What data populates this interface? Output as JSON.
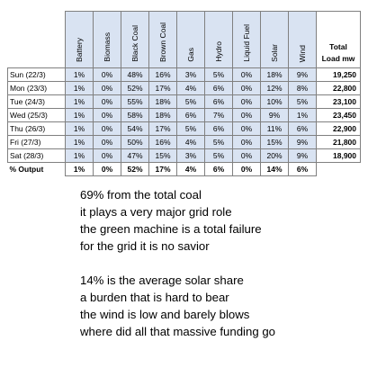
{
  "table": {
    "sources": [
      "Battery",
      "Biomass",
      "Black Coal",
      "Brown Coal",
      "Gas",
      "Hydro",
      "Liquid Fuel",
      "Solar",
      "Wind"
    ],
    "total_header": [
      "Total",
      "Load mw"
    ],
    "rows": [
      {
        "day": "Sun (22/3)",
        "values": [
          "1%",
          "0%",
          "48%",
          "16%",
          "3%",
          "5%",
          "0%",
          "18%",
          "9%"
        ],
        "total": "19,250"
      },
      {
        "day": "Mon (23/3)",
        "values": [
          "1%",
          "0%",
          "52%",
          "17%",
          "4%",
          "6%",
          "0%",
          "12%",
          "8%"
        ],
        "total": "22,800"
      },
      {
        "day": "Tue (24/3)",
        "values": [
          "1%",
          "0%",
          "55%",
          "18%",
          "5%",
          "6%",
          "0%",
          "10%",
          "5%"
        ],
        "total": "23,100"
      },
      {
        "day": "Wed (25/3)",
        "values": [
          "1%",
          "0%",
          "58%",
          "18%",
          "6%",
          "7%",
          "0%",
          "9%",
          "1%"
        ],
        "total": "23,450"
      },
      {
        "day": "Thu (26/3)",
        "values": [
          "1%",
          "0%",
          "54%",
          "17%",
          "5%",
          "6%",
          "0%",
          "11%",
          "6%"
        ],
        "total": "22,900"
      },
      {
        "day": "Fri (27/3)",
        "values": [
          "1%",
          "0%",
          "50%",
          "16%",
          "4%",
          "5%",
          "0%",
          "15%",
          "9%"
        ],
        "total": "21,800"
      },
      {
        "day": "Sat (28/3)",
        "values": [
          "1%",
          "0%",
          "47%",
          "15%",
          "3%",
          "5%",
          "0%",
          "20%",
          "9%"
        ],
        "total": "18,900"
      }
    ],
    "output": {
      "label": "% Output",
      "values": [
        "1%",
        "0%",
        "52%",
        "17%",
        "4%",
        "6%",
        "0%",
        "14%",
        "6%"
      ]
    }
  },
  "poem": {
    "stanza1": [
      "69% from the total coal",
      "it plays a very major grid role",
      "the green machine is a total failure",
      "for the grid it is no savior"
    ],
    "stanza2": [
      "14% is the average solar share",
      "a burden that is hard to bear",
      "the wind is low and barely blows",
      "where did all that massive funding go"
    ]
  },
  "colors": {
    "header_fill": "#d9e3f2",
    "cell_fill": "#d9e3f2",
    "border": "#808080"
  }
}
